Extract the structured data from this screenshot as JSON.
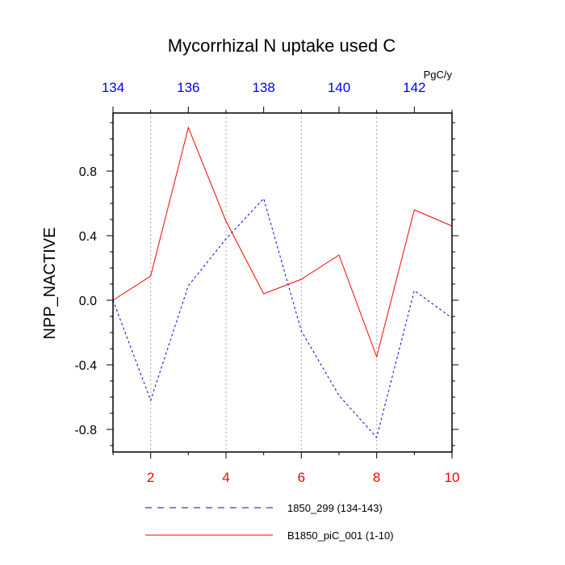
{
  "chart_data": {
    "type": "line",
    "title": "Mycorrhizal N uptake used C",
    "ylabel": "NPP_NACTIVE",
    "top_axis_units": "PgC/y",
    "ylim": [
      -0.94,
      1.16
    ],
    "y_ticks": [
      -0.8,
      -0.4,
      0.0,
      0.4,
      0.8
    ],
    "y_tick_labels": [
      "-0.8",
      "-0.4",
      "0.0",
      "0.4",
      "0.8"
    ],
    "xlim": [
      1,
      10
    ],
    "x_ticks": [
      2,
      4,
      6,
      8,
      10
    ],
    "x_tick_labels": [
      "2",
      "4",
      "6",
      "8",
      "10"
    ],
    "x_tick_color": "#ff0000",
    "x_top_ticks": [
      134,
      136,
      138,
      140,
      142
    ],
    "x_top_tick_labels": [
      "134",
      "136",
      "138",
      "140",
      "142"
    ],
    "x_top_tick_color": "#0000ff",
    "x_top_offset": 133,
    "grid": "vertical dotted",
    "legend_placement": "bottom",
    "series": [
      {
        "name": "1850_299 (134-143)",
        "color": "#0000ff",
        "dash": "dashed",
        "x": [
          134,
          135,
          136,
          137,
          138,
          139,
          140,
          141,
          142,
          143
        ],
        "values": [
          0.0,
          -0.62,
          0.09,
          0.38,
          0.63,
          -0.19,
          -0.59,
          -0.85,
          0.06,
          -0.11
        ]
      },
      {
        "name": "B1850_piC_001 (1-10)",
        "color": "#ff0000",
        "dash": "solid",
        "x": [
          1,
          2,
          3,
          4,
          5,
          6,
          7,
          8,
          9,
          10
        ],
        "values": [
          0.0,
          0.15,
          1.07,
          0.49,
          0.04,
          0.13,
          0.28,
          -0.35,
          0.56,
          0.46
        ]
      }
    ]
  }
}
